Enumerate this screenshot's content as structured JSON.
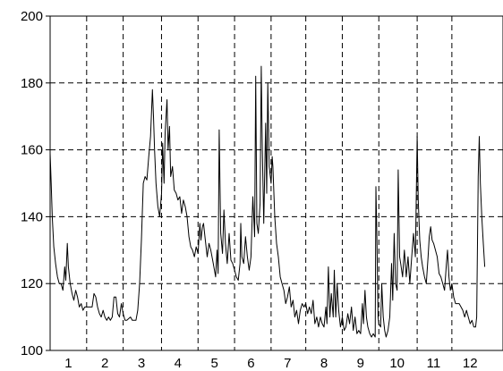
{
  "chart_data": {
    "type": "line",
    "title": "",
    "xlabel": "",
    "ylabel": "",
    "xlim": [
      0.5,
      12.9
    ],
    "ylim": [
      100,
      200
    ],
    "y_ticks": [
      100,
      120,
      140,
      160,
      180,
      200
    ],
    "x_tick_labels": [
      {
        "x": 1,
        "label": "1"
      },
      {
        "x": 2,
        "label": "2"
      },
      {
        "x": 3,
        "label": "3"
      },
      {
        "x": 4,
        "label": "4"
      },
      {
        "x": 5,
        "label": "5"
      },
      {
        "x": 6,
        "label": "6"
      },
      {
        "x": 7,
        "label": "7"
      },
      {
        "x": 8,
        "label": "8"
      },
      {
        "x": 9,
        "label": "9"
      },
      {
        "x": 10,
        "label": "10"
      },
      {
        "x": 11,
        "label": "11"
      },
      {
        "x": 12,
        "label": "12"
      }
    ],
    "vertical_gridlines_x": [
      1.5,
      2.5,
      3.55,
      4.55,
      5.55,
      6.55,
      7.5,
      8.5,
      9.5,
      10.55,
      11.5
    ],
    "horizontal_gridlines_y": [
      120,
      140,
      160,
      180
    ],
    "grid": "dashed",
    "series": [
      {
        "color": "#000000",
        "points": [
          [
            0.5,
            159
          ],
          [
            0.53,
            150
          ],
          [
            0.56,
            140
          ],
          [
            0.6,
            131
          ],
          [
            0.65,
            126
          ],
          [
            0.7,
            122
          ],
          [
            0.75,
            120
          ],
          [
            0.8,
            120
          ],
          [
            0.85,
            118
          ],
          [
            0.9,
            125
          ],
          [
            0.93,
            121
          ],
          [
            0.97,
            132
          ],
          [
            1.0,
            125
          ],
          [
            1.05,
            120
          ],
          [
            1.1,
            117
          ],
          [
            1.15,
            115
          ],
          [
            1.2,
            118
          ],
          [
            1.25,
            116
          ],
          [
            1.3,
            113
          ],
          [
            1.35,
            114
          ],
          [
            1.4,
            112
          ],
          [
            1.45,
            113
          ],
          [
            1.5,
            113
          ],
          [
            1.55,
            113
          ],
          [
            1.6,
            113
          ],
          [
            1.65,
            113
          ],
          [
            1.7,
            117
          ],
          [
            1.75,
            116
          ],
          [
            1.8,
            113
          ],
          [
            1.85,
            111
          ],
          [
            1.9,
            110
          ],
          [
            1.95,
            112
          ],
          [
            2.0,
            110
          ],
          [
            2.05,
            109
          ],
          [
            2.1,
            110
          ],
          [
            2.15,
            109
          ],
          [
            2.2,
            110
          ],
          [
            2.25,
            116
          ],
          [
            2.3,
            116
          ],
          [
            2.35,
            111
          ],
          [
            2.4,
            110
          ],
          [
            2.45,
            114
          ],
          [
            2.5,
            111
          ],
          [
            2.55,
            109
          ],
          [
            2.6,
            109
          ],
          [
            2.7,
            110
          ],
          [
            2.75,
            109
          ],
          [
            2.85,
            109
          ],
          [
            2.9,
            112
          ],
          [
            2.95,
            120
          ],
          [
            3.0,
            133
          ],
          [
            3.05,
            150
          ],
          [
            3.1,
            152
          ],
          [
            3.15,
            151
          ],
          [
            3.2,
            158
          ],
          [
            3.25,
            164
          ],
          [
            3.3,
            178
          ],
          [
            3.33,
            170
          ],
          [
            3.36,
            160
          ],
          [
            3.4,
            150
          ],
          [
            3.45,
            143
          ],
          [
            3.5,
            140
          ],
          [
            3.55,
            147
          ],
          [
            3.58,
            162
          ],
          [
            3.62,
            150
          ],
          [
            3.65,
            165
          ],
          [
            3.7,
            175
          ],
          [
            3.73,
            160
          ],
          [
            3.77,
            167
          ],
          [
            3.8,
            152
          ],
          [
            3.85,
            155
          ],
          [
            3.9,
            148
          ],
          [
            3.95,
            147
          ],
          [
            4.0,
            145
          ],
          [
            4.05,
            146
          ],
          [
            4.1,
            141
          ],
          [
            4.15,
            145
          ],
          [
            4.2,
            143
          ],
          [
            4.25,
            140
          ],
          [
            4.3,
            134
          ],
          [
            4.35,
            131
          ],
          [
            4.4,
            130
          ],
          [
            4.45,
            128
          ],
          [
            4.5,
            131
          ],
          [
            4.55,
            129
          ],
          [
            4.6,
            138
          ],
          [
            4.63,
            133
          ],
          [
            4.67,
            137
          ],
          [
            4.7,
            138
          ],
          [
            4.75,
            133
          ],
          [
            4.8,
            128
          ],
          [
            4.85,
            132
          ],
          [
            4.9,
            130
          ],
          [
            4.95,
            127
          ],
          [
            5.0,
            124
          ],
          [
            5.03,
            122
          ],
          [
            5.07,
            130
          ],
          [
            5.1,
            123
          ],
          [
            5.13,
            166
          ],
          [
            5.17,
            135
          ],
          [
            5.22,
            129
          ],
          [
            5.26,
            142
          ],
          [
            5.3,
            132
          ],
          [
            5.35,
            126
          ],
          [
            5.4,
            135
          ],
          [
            5.45,
            127
          ],
          [
            5.5,
            126
          ],
          [
            5.55,
            124
          ],
          [
            5.6,
            122
          ],
          [
            5.65,
            121
          ],
          [
            5.7,
            126
          ],
          [
            5.72,
            138
          ],
          [
            5.75,
            128
          ],
          [
            5.8,
            126
          ],
          [
            5.85,
            134
          ],
          [
            5.9,
            128
          ],
          [
            5.95,
            124
          ],
          [
            6.0,
            128
          ],
          [
            6.05,
            146
          ],
          [
            6.1,
            134
          ],
          [
            6.13,
            182
          ],
          [
            6.16,
            138
          ],
          [
            6.2,
            135
          ],
          [
            6.25,
            144
          ],
          [
            6.28,
            185
          ],
          [
            6.31,
            160
          ],
          [
            6.35,
            138
          ],
          [
            6.4,
            168
          ],
          [
            6.43,
            147
          ],
          [
            6.46,
            180
          ],
          [
            6.5,
            155
          ],
          [
            6.55,
            150
          ],
          [
            6.58,
            158
          ],
          [
            6.6,
            155
          ],
          [
            6.65,
            140
          ],
          [
            6.7,
            132
          ],
          [
            6.75,
            128
          ],
          [
            6.8,
            122
          ],
          [
            6.85,
            120
          ],
          [
            6.9,
            118
          ],
          [
            6.95,
            114
          ],
          [
            7.0,
            116
          ],
          [
            7.05,
            119
          ],
          [
            7.1,
            113
          ],
          [
            7.15,
            115
          ],
          [
            7.2,
            110
          ],
          [
            7.25,
            112
          ],
          [
            7.3,
            108
          ],
          [
            7.35,
            112
          ],
          [
            7.4,
            114
          ],
          [
            7.45,
            113
          ],
          [
            7.5,
            114
          ],
          [
            7.55,
            111
          ],
          [
            7.6,
            113
          ],
          [
            7.65,
            111
          ],
          [
            7.7,
            115
          ],
          [
            7.75,
            108
          ],
          [
            7.8,
            110
          ],
          [
            7.85,
            107
          ],
          [
            7.9,
            110
          ],
          [
            7.95,
            108
          ],
          [
            8.0,
            107
          ],
          [
            8.05,
            113
          ],
          [
            8.08,
            108
          ],
          [
            8.12,
            125
          ],
          [
            8.16,
            110
          ],
          [
            8.2,
            117
          ],
          [
            8.25,
            110
          ],
          [
            8.28,
            124
          ],
          [
            8.32,
            110
          ],
          [
            8.36,
            120
          ],
          [
            8.4,
            112
          ],
          [
            8.45,
            107
          ],
          [
            8.5,
            110
          ],
          [
            8.55,
            106
          ],
          [
            8.6,
            107
          ],
          [
            8.65,
            111
          ],
          [
            8.7,
            108
          ],
          [
            8.75,
            113
          ],
          [
            8.8,
            106
          ],
          [
            8.85,
            110
          ],
          [
            8.9,
            105
          ],
          [
            8.95,
            106
          ],
          [
            9.0,
            105
          ],
          [
            9.05,
            114
          ],
          [
            9.08,
            108
          ],
          [
            9.12,
            118
          ],
          [
            9.16,
            110
          ],
          [
            9.2,
            107
          ],
          [
            9.25,
            105
          ],
          [
            9.3,
            104
          ],
          [
            9.35,
            105
          ],
          [
            9.4,
            104
          ],
          [
            9.42,
            149
          ],
          [
            9.45,
            132
          ],
          [
            9.48,
            110
          ],
          [
            9.5,
            108
          ],
          [
            9.55,
            107
          ],
          [
            9.58,
            120
          ],
          [
            9.62,
            110
          ],
          [
            9.66,
            106
          ],
          [
            9.7,
            104
          ],
          [
            9.75,
            106
          ],
          [
            9.8,
            110
          ],
          [
            9.85,
            126
          ],
          [
            9.88,
            115
          ],
          [
            9.92,
            135
          ],
          [
            9.96,
            120
          ],
          [
            10.0,
            118
          ],
          [
            10.03,
            154
          ],
          [
            10.07,
            128
          ],
          [
            10.1,
            126
          ],
          [
            10.15,
            122
          ],
          [
            10.2,
            130
          ],
          [
            10.25,
            122
          ],
          [
            10.3,
            128
          ],
          [
            10.35,
            120
          ],
          [
            10.4,
            128
          ],
          [
            10.45,
            135
          ],
          [
            10.5,
            128
          ],
          [
            10.55,
            164
          ],
          [
            10.58,
            145
          ],
          [
            10.62,
            133
          ],
          [
            10.66,
            128
          ],
          [
            10.7,
            125
          ],
          [
            10.75,
            122
          ],
          [
            10.8,
            120
          ],
          [
            10.85,
            128
          ],
          [
            10.88,
            134
          ],
          [
            10.92,
            137
          ],
          [
            10.96,
            133
          ],
          [
            11.0,
            132
          ],
          [
            11.05,
            130
          ],
          [
            11.1,
            128
          ],
          [
            11.15,
            123
          ],
          [
            11.2,
            122
          ],
          [
            11.25,
            120
          ],
          [
            11.3,
            118
          ],
          [
            11.35,
            126
          ],
          [
            11.38,
            130
          ],
          [
            11.42,
            122
          ],
          [
            11.46,
            118
          ],
          [
            11.5,
            120
          ],
          [
            11.55,
            116
          ],
          [
            11.6,
            114
          ],
          [
            11.65,
            114
          ],
          [
            11.7,
            114
          ],
          [
            11.75,
            113
          ],
          [
            11.8,
            112
          ],
          [
            11.85,
            110
          ],
          [
            11.9,
            112
          ],
          [
            11.95,
            110
          ],
          [
            12.0,
            108
          ],
          [
            12.05,
            109
          ],
          [
            12.1,
            107
          ],
          [
            12.15,
            107
          ],
          [
            12.18,
            110
          ],
          [
            12.22,
            152
          ],
          [
            12.25,
            164
          ],
          [
            12.28,
            150
          ],
          [
            12.32,
            140
          ],
          [
            12.36,
            132
          ],
          [
            12.4,
            125
          ]
        ]
      }
    ]
  }
}
